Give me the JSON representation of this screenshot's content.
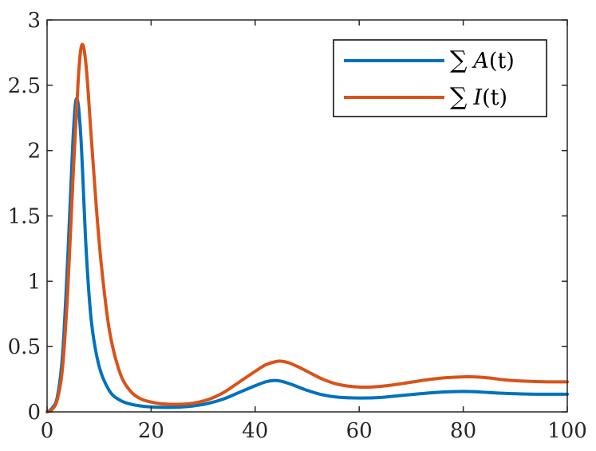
{
  "chart_data": {
    "type": "line",
    "title": "",
    "xlabel": "",
    "ylabel": "",
    "xlim": [
      0,
      100
    ],
    "ylim": [
      0,
      3
    ],
    "xticks": [
      "0",
      "20",
      "40",
      "60",
      "80",
      "100"
    ],
    "yticks": [
      "0",
      "0.5",
      "1",
      "1.5",
      "2",
      "2.5",
      "3"
    ],
    "grid": false,
    "legend_position": "top-right",
    "series": [
      {
        "name": "∑ A(t)",
        "name_parts": {
          "sum": "∑",
          "var": "A",
          "arg": "(t)"
        },
        "color": "#0072BD",
        "x": [
          0,
          1,
          2,
          3,
          4,
          5,
          5.7,
          6.5,
          7.5,
          8.5,
          10,
          12,
          14,
          16,
          18,
          20,
          22,
          25,
          28,
          31,
          34,
          37,
          40,
          42,
          43.5,
          45,
          47,
          50,
          53,
          56,
          60,
          64,
          68,
          72,
          76,
          79,
          82,
          85,
          88,
          92,
          96,
          100
        ],
        "y": [
          0,
          0.03,
          0.12,
          0.45,
          1.2,
          2.1,
          2.4,
          2.1,
          1.25,
          0.7,
          0.35,
          0.16,
          0.09,
          0.06,
          0.045,
          0.038,
          0.035,
          0.036,
          0.045,
          0.065,
          0.1,
          0.15,
          0.2,
          0.23,
          0.24,
          0.235,
          0.21,
          0.165,
          0.13,
          0.112,
          0.106,
          0.11,
          0.125,
          0.14,
          0.152,
          0.156,
          0.155,
          0.148,
          0.142,
          0.137,
          0.135,
          0.135
        ]
      },
      {
        "name": "∑ I(t)",
        "name_parts": {
          "sum": "∑",
          "var": "I",
          "arg": "(t)"
        },
        "color": "#D95319",
        "x": [
          0,
          1,
          2,
          3,
          4,
          5,
          6,
          6.7,
          7.5,
          8.5,
          9.5,
          10.5,
          12,
          14,
          16,
          18,
          20,
          22,
          25,
          28,
          31,
          34,
          37,
          40,
          42,
          44,
          45,
          46.5,
          48,
          50,
          53,
          56,
          60,
          64,
          68,
          72,
          76,
          80,
          82,
          85,
          88,
          92,
          96,
          100
        ],
        "y": [
          0,
          0.02,
          0.1,
          0.35,
          0.95,
          1.8,
          2.55,
          2.81,
          2.65,
          2.1,
          1.55,
          1.1,
          0.62,
          0.3,
          0.16,
          0.1,
          0.075,
          0.062,
          0.058,
          0.066,
          0.095,
          0.15,
          0.23,
          0.31,
          0.36,
          0.385,
          0.388,
          0.375,
          0.35,
          0.31,
          0.25,
          0.21,
          0.19,
          0.195,
          0.215,
          0.24,
          0.26,
          0.268,
          0.268,
          0.26,
          0.245,
          0.235,
          0.23,
          0.23
        ]
      }
    ]
  }
}
